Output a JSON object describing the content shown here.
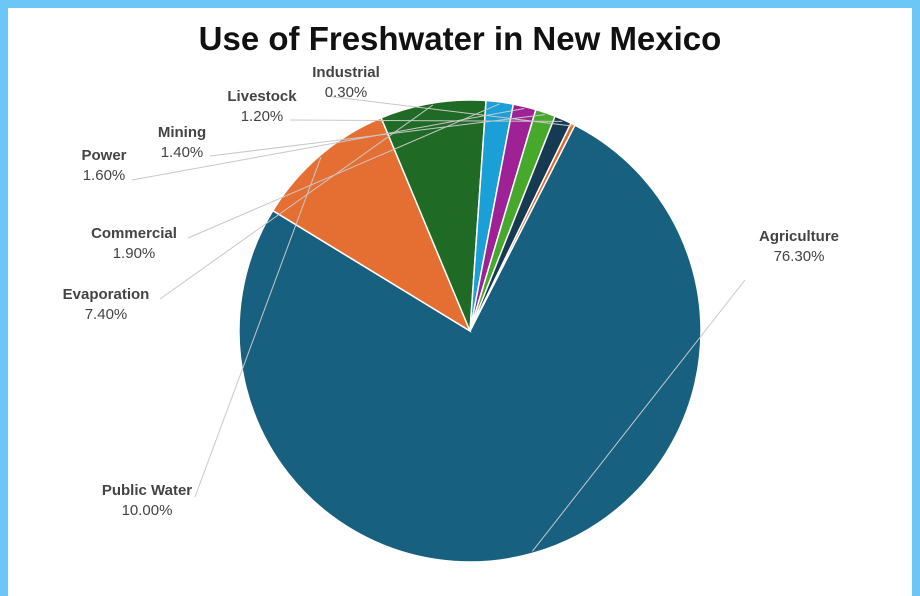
{
  "chart_data": {
    "type": "pie",
    "title": "Use of Freshwater in New Mexico",
    "start_angle_deg": 27,
    "slices": [
      {
        "label": "Agriculture",
        "value": 76.3,
        "value_text": "76.30%",
        "color": "#18607f"
      },
      {
        "label": "Public Water",
        "value": 10.0,
        "value_text": "10.00%",
        "color": "#e56f33"
      },
      {
        "label": "Evaporation",
        "value": 7.4,
        "value_text": "7.40%",
        "color": "#1f6b25"
      },
      {
        "label": "Commercial",
        "value": 1.9,
        "value_text": "1.90%",
        "color": "#1a9fd7"
      },
      {
        "label": "Power",
        "value": 1.6,
        "value_text": "1.60%",
        "color": "#9e2296"
      },
      {
        "label": "Mining",
        "value": 1.4,
        "value_text": "1.40%",
        "color": "#47a92c"
      },
      {
        "label": "Livestock",
        "value": 1.2,
        "value_text": "1.20%",
        "color": "#163a52"
      },
      {
        "label": "Industrial",
        "value": 0.3,
        "value_text": "0.30%",
        "color": "#e5652a"
      }
    ]
  }
}
